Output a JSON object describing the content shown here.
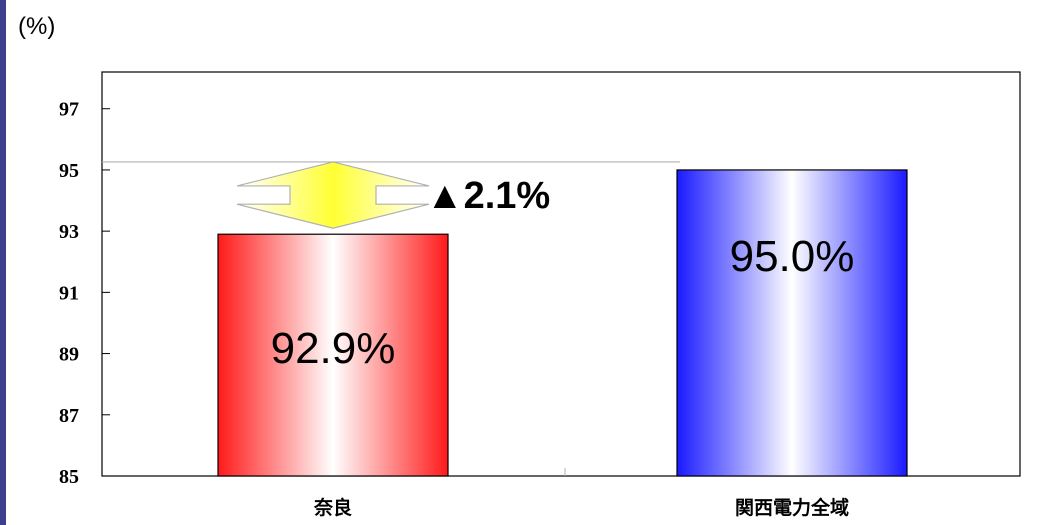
{
  "unit_label": "(%)",
  "colors": {
    "nara_bar": "#ff1a1a",
    "kansai_bar": "#1a1aff",
    "arrow_fill": "#ffff33",
    "arrow_stroke": "#b0b0b0"
  },
  "annotation": {
    "text": "▲2.1%"
  },
  "chart_data": {
    "type": "bar",
    "categories": [
      "奈良",
      "関西電力全域"
    ],
    "values": [
      92.9,
      95.0
    ],
    "data_labels": [
      "92.9%",
      "95.0%"
    ],
    "yticks": [
      "85",
      "87",
      "89",
      "91",
      "93",
      "95",
      "97"
    ],
    "ylim": [
      85,
      98.2
    ],
    "title": "",
    "xlabel": "",
    "ylabel": "(%)",
    "grid": false,
    "legend": "none"
  }
}
